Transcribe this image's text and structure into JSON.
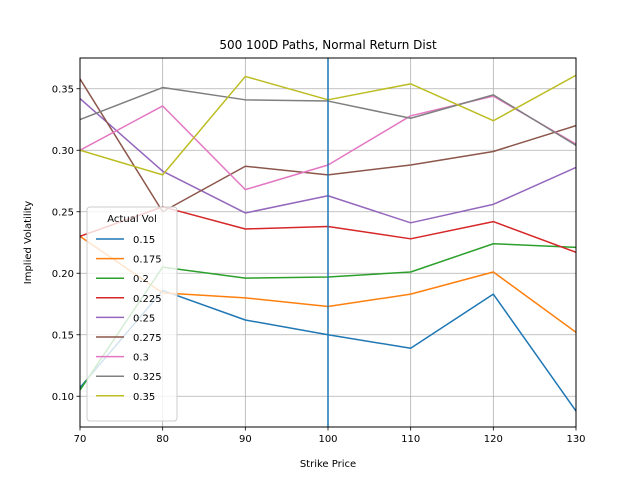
{
  "chart_data": {
    "type": "line",
    "title": "500 100D Paths, Normal Return Dist",
    "xlabel": "Strike Price",
    "ylabel": "Implied Volatility",
    "xlim": [
      70,
      130
    ],
    "ylim": [
      0.075,
      0.375
    ],
    "x_ticks": [
      "70",
      "80",
      "90",
      "100",
      "110",
      "120",
      "130"
    ],
    "y_ticks": [
      "0.10",
      "0.15",
      "0.20",
      "0.25",
      "0.30",
      "0.35"
    ],
    "grid": true,
    "vertical_line": {
      "x": 100,
      "color": "#1f77b4"
    },
    "legend": {
      "title": "Actual Vol",
      "placement": "center-left"
    },
    "x": [
      70,
      80,
      90,
      100,
      110,
      120,
      130
    ],
    "series": [
      {
        "name": "0.15",
        "color": "#1f77b4",
        "values": [
          0.107,
          0.186,
          0.162,
          0.15,
          0.139,
          0.183,
          0.088
        ]
      },
      {
        "name": "0.175",
        "color": "#ff7f0e",
        "values": [
          0.23,
          0.184,
          0.18,
          0.173,
          0.183,
          0.201,
          0.152
        ]
      },
      {
        "name": "0.2",
        "color": "#2ca02c",
        "values": [
          0.105,
          0.205,
          0.196,
          0.197,
          0.201,
          0.224,
          0.221
        ]
      },
      {
        "name": "0.225",
        "color": "#d62728",
        "values": [
          0.23,
          0.254,
          0.236,
          0.238,
          0.228,
          0.242,
          0.217
        ]
      },
      {
        "name": "0.25",
        "color": "#9467bd",
        "values": [
          0.342,
          0.283,
          0.249,
          0.263,
          0.241,
          0.256,
          0.286
        ]
      },
      {
        "name": "0.275",
        "color": "#8c564b",
        "values": [
          0.358,
          0.25,
          0.287,
          0.28,
          0.288,
          0.299,
          0.32
        ]
      },
      {
        "name": "0.3",
        "color": "#e377c2",
        "values": [
          0.3,
          0.336,
          0.268,
          0.288,
          0.328,
          0.344,
          0.305
        ]
      },
      {
        "name": "0.325",
        "color": "#7f7f7f",
        "values": [
          0.325,
          0.351,
          0.341,
          0.34,
          0.326,
          0.345,
          0.304
        ]
      },
      {
        "name": "0.35",
        "color": "#bcbd22",
        "values": [
          0.3,
          0.28,
          0.36,
          0.341,
          0.354,
          0.324,
          0.361
        ]
      }
    ]
  }
}
